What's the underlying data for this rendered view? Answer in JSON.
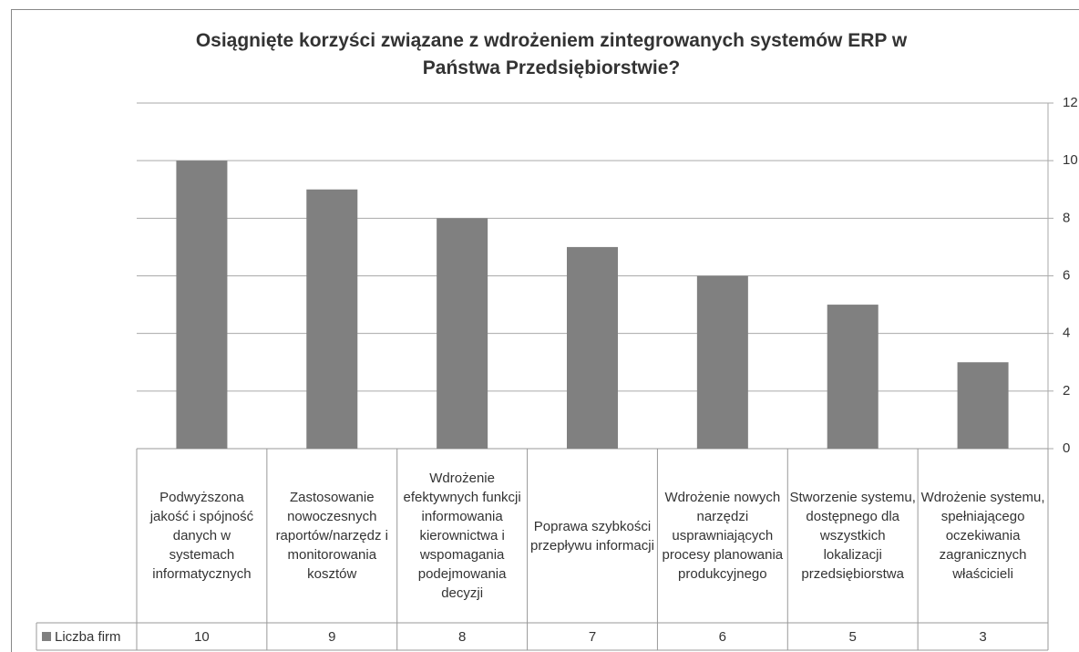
{
  "chart_data": {
    "type": "bar",
    "title": "Osiągnięte korzyści związane z wdrożeniem zintegrowanych systemów  ERP w Państwa Przedsiębiorstwie?",
    "categories": [
      "Podwyższona jakość i spójność danych w systemach informatycznych",
      "Zastosowanie nowoczesnych raportów/narzędz i monitorowania kosztów",
      "Wdrożenie efektywnych funkcji informowania kierownictwa i wspomagania podejmowania decyzji",
      "Poprawa szybkości przepływu informacji",
      "Wdrożenie nowych narzędzi usprawniających procesy planowania produkcyjnego",
      "Stworzenie systemu, dostępnego dla wszystkich lokalizacji przedsiębiorstwa",
      "Wdrożenie systemu, spełniającego oczekiwania zagranicznych właścicieli"
    ],
    "series": [
      {
        "name": "Liczba firm",
        "color": "#808080",
        "values": [
          10,
          9,
          8,
          7,
          6,
          5,
          3
        ]
      }
    ],
    "ylim": [
      0,
      12
    ],
    "yticks": [
      0,
      2,
      4,
      6,
      8,
      10,
      12
    ],
    "grid": true,
    "y_axis_side": "right"
  }
}
